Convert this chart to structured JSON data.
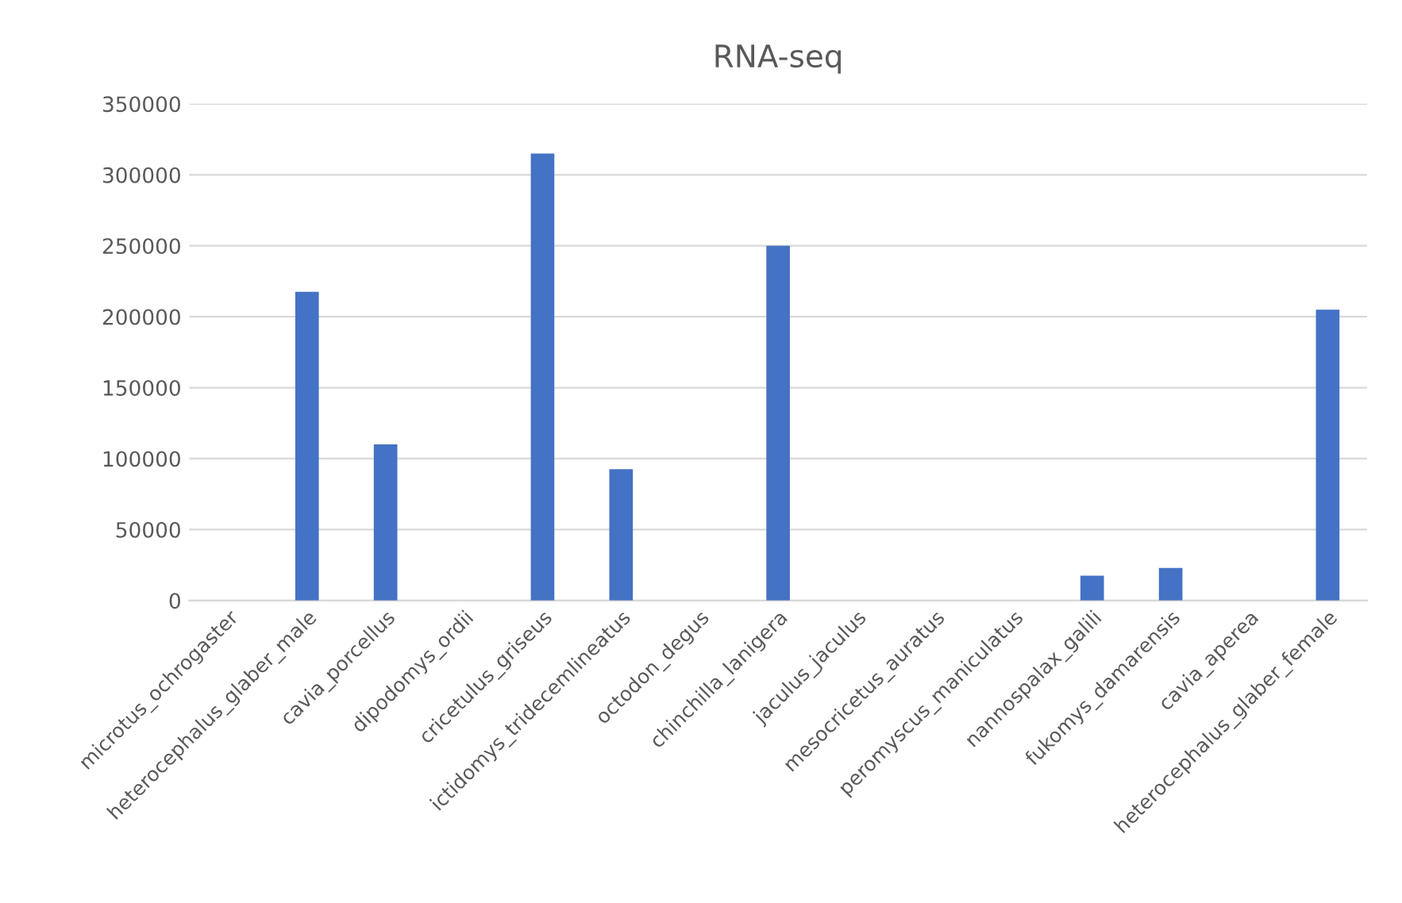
{
  "chart_data": {
    "type": "bar",
    "title": "RNA-seq",
    "categories": [
      "microtus_ochrogaster",
      "heterocephalus_glaber_male",
      "cavia_porcellus",
      "dipodomys_ordii",
      "cricetulus_griseus",
      "ictidomys_tridecemlineatus",
      "octodon_degus",
      "chinchilla_lanigera",
      "jaculus_jaculus",
      "mesocricetus_auratus",
      "peromyscus_maniculatus",
      "nannospalax_galili",
      "fukomys_damarensis",
      "cavia_aperea",
      "heterocephalus_glaber_female"
    ],
    "values": [
      0,
      217500,
      110000,
      0,
      315000,
      92500,
      0,
      250000,
      0,
      0,
      0,
      17500,
      23000,
      0,
      205000
    ],
    "color": "#4472c4",
    "ylim": [
      0,
      350000
    ],
    "yticks": [
      0,
      50000,
      100000,
      150000,
      200000,
      250000,
      300000,
      350000
    ],
    "grid": "y",
    "legend": false
  }
}
